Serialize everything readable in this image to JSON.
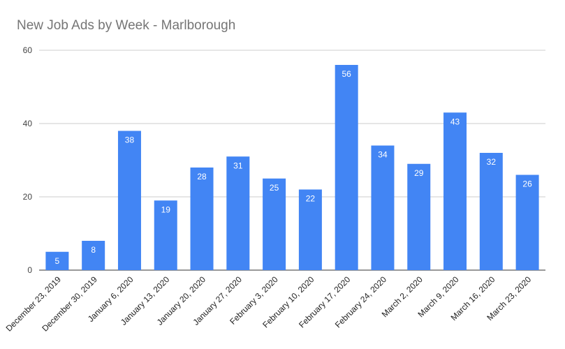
{
  "chart_data": {
    "type": "bar",
    "title": "New Job Ads by Week - Marlborough",
    "xlabel": "",
    "ylabel": "",
    "categories": [
      "December 23, 2019",
      "December 30, 2019",
      "January 6, 2020",
      "January 13, 2020",
      "January 20, 2020",
      "January 27, 2020",
      "February 3, 2020",
      "February 10, 2020",
      "February 17, 2020",
      "February 24, 2020",
      "March 2, 2020",
      "March 9, 2020",
      "March 16, 2020",
      "March 23, 2020"
    ],
    "values": [
      5,
      8,
      38,
      19,
      28,
      31,
      25,
      22,
      56,
      34,
      29,
      43,
      32,
      26
    ],
    "ylim": [
      0,
      60
    ],
    "yticks": [
      0,
      20,
      40,
      60
    ],
    "grid": true,
    "legend": "none",
    "bar_color": "#4285f4",
    "gridline_color": "#cccccc"
  }
}
